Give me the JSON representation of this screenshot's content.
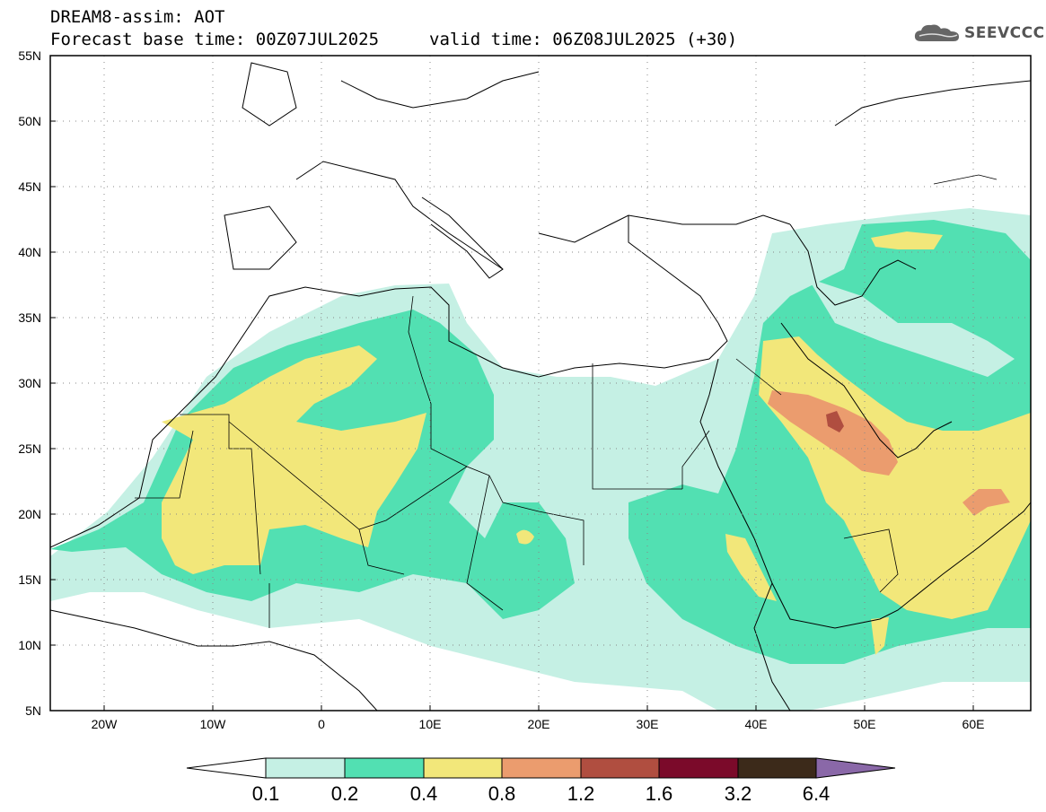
{
  "header": {
    "title": "DREAM8-assim: AOT",
    "base_time": "Forecast base time: 00Z07JUL2025",
    "valid_time": "valid time: 06Z08JUL2025 (+30)",
    "logo_text": "SEEVCCC"
  },
  "map": {
    "lat_labels": [
      "55N",
      "50N",
      "45N",
      "40N",
      "35N",
      "30N",
      "25N",
      "20N",
      "15N",
      "10N",
      "5N"
    ],
    "lon_labels": [
      "20W",
      "10W",
      "0",
      "10E",
      "20E",
      "30E",
      "40E",
      "50E",
      "60E"
    ]
  },
  "legend": {
    "levels": [
      "0.1",
      "0.2",
      "0.4",
      "0.8",
      "1.2",
      "1.6",
      "3.2",
      "6.4"
    ],
    "colors": [
      "#c5f0e4",
      "#52e0b2",
      "#f2e77a",
      "#eb9c6e",
      "#b04e40",
      "#7b0a2a",
      "#3c2a1a",
      "#8a68a8"
    ]
  }
}
